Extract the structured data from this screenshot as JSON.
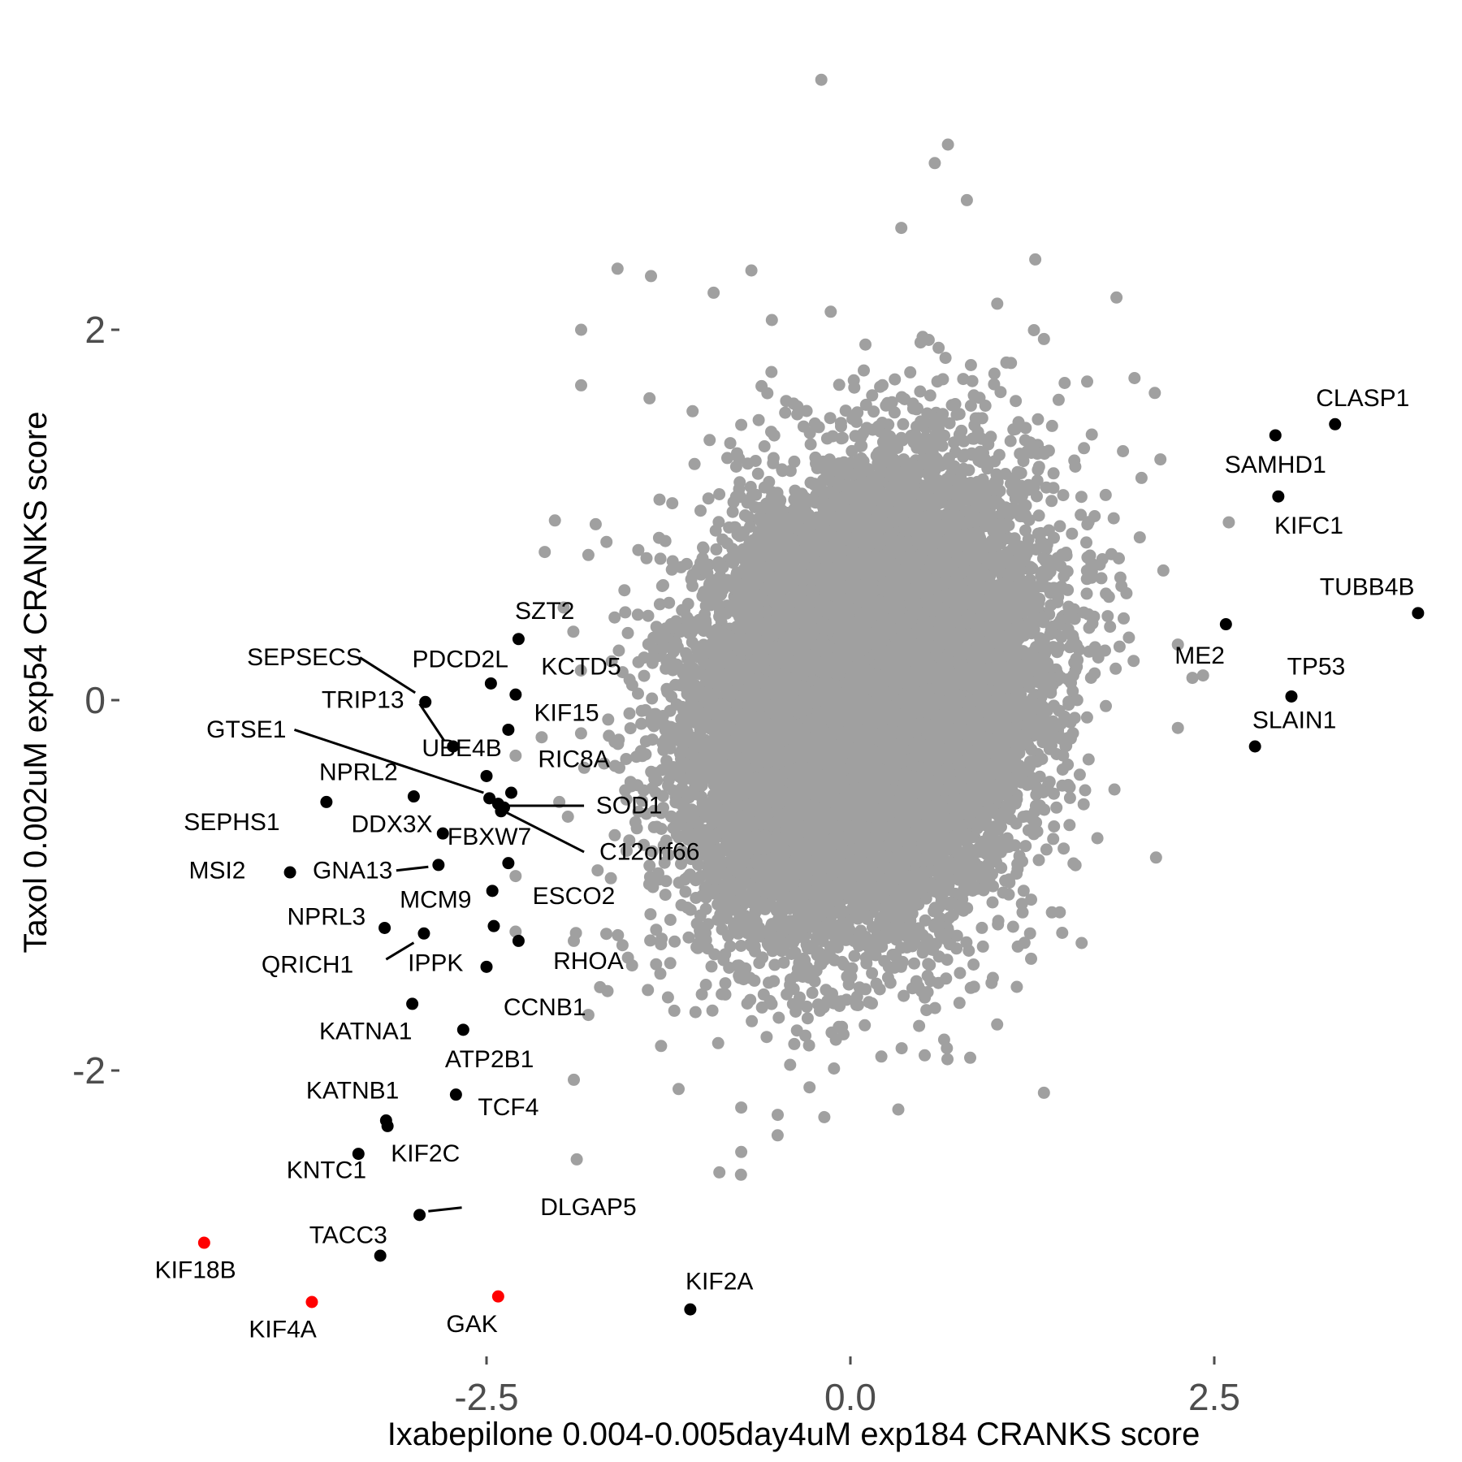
{
  "chart_data": {
    "type": "scatter",
    "xlabel": "Ixabepilone 0.004-0.005day4uM exp184 CRANKS score",
    "ylabel": "Taxol 0.002uM exp54 CRANKS score",
    "xlim": [
      -4.6,
      4.2
    ],
    "ylim": [
      -3.45,
      3.4
    ],
    "x_ticks": [
      -2.5,
      0.0,
      2.5
    ],
    "x_tick_labels": [
      "-2.5",
      "0.0",
      "2.5"
    ],
    "y_ticks": [
      -2,
      0,
      2
    ],
    "y_tick_labels": [
      "-2",
      "0",
      "2"
    ],
    "grid": false,
    "background_cloud": {
      "color": "#a0a0a0",
      "approx_points": 18000,
      "x_center": 0.1,
      "y_center": 0.0,
      "x_sd": 0.55,
      "y_sd": 0.58,
      "correlation": 0.2,
      "notable_points": [
        [
          -0.2,
          3.35
        ],
        [
          0.67,
          3.0
        ],
        [
          0.58,
          2.9
        ],
        [
          0.8,
          2.7
        ],
        [
          0.35,
          2.55
        ],
        [
          1.27,
          2.38
        ],
        [
          -1.6,
          2.33
        ],
        [
          -1.37,
          2.29
        ],
        [
          -0.68,
          2.32
        ],
        [
          -0.94,
          2.2
        ],
        [
          1.33,
          1.95
        ],
        [
          -1.85,
          2.0
        ],
        [
          -1.85,
          1.7
        ],
        [
          -1.38,
          1.63
        ],
        [
          -1.75,
          0.95
        ],
        [
          2.0,
          1.2
        ],
        [
          2.13,
          1.3
        ],
        [
          2.6,
          0.96
        ],
        [
          2.15,
          0.7
        ],
        [
          2.25,
          0.3
        ],
        [
          2.35,
          0.12
        ],
        [
          2.25,
          -0.15
        ],
        [
          2.1,
          -0.85
        ],
        [
          -2.03,
          0.97
        ],
        [
          -2.1,
          0.8
        ],
        [
          -1.97,
          0.5
        ],
        [
          -2.0,
          -0.55
        ],
        [
          -1.9,
          -1.3
        ],
        [
          -1.8,
          -1.7
        ],
        [
          -1.72,
          -1.55
        ],
        [
          -1.9,
          -2.05
        ],
        [
          -0.75,
          -2.2
        ],
        [
          -0.9,
          -2.55
        ],
        [
          -0.75,
          -2.44
        ],
        [
          -1.88,
          -2.48
        ],
        [
          -0.5,
          -2.35
        ],
        [
          1.33,
          -2.12
        ],
        [
          -2.3,
          -0.95
        ],
        [
          -2.3,
          -1.25
        ],
        [
          -2.3,
          -0.3
        ],
        [
          -1.18,
          -2.1
        ]
      ]
    },
    "highlight_series": [
      {
        "color": "#000000",
        "points": [
          {
            "label": "CLASP1",
            "x": 3.33,
            "y": 1.49
          },
          {
            "label": "SAMHD1",
            "x": 2.92,
            "y": 1.43
          },
          {
            "label": "KIFC1",
            "x": 2.94,
            "y": 1.1
          },
          {
            "label": "TUBB4B",
            "x": 3.9,
            "y": 0.47
          },
          {
            "label": "ME2",
            "x": 2.58,
            "y": 0.41
          },
          {
            "label": "TP53",
            "x": 3.03,
            "y": 0.02
          },
          {
            "label": "SLAIN1",
            "x": 2.78,
            "y": -0.25
          },
          {
            "label": "SZT2",
            "x": -2.28,
            "y": 0.33
          },
          {
            "label": "PDCD2L",
            "x": -2.47,
            "y": 0.09
          },
          {
            "label": "KCTD5",
            "x": -2.3,
            "y": 0.03
          },
          {
            "label": "SEPSECS",
            "x": -2.92,
            "y": -0.01
          },
          {
            "label": "TRIP13",
            "x": -2.73,
            "y": -0.25
          },
          {
            "label": "KIF15",
            "x": -2.35,
            "y": -0.16
          },
          {
            "label": "UBE4B",
            "x": -2.5,
            "y": -0.41
          },
          {
            "label": "RIC8A",
            "x": -2.33,
            "y": -0.5
          },
          {
            "label": "GTSE1",
            "x": -2.48,
            "y": -0.53
          },
          {
            "label": "NPRL2",
            "x": -3.6,
            "y": -0.55
          },
          {
            "label": "SOD1",
            "x": -2.38,
            "y": -0.58
          },
          {
            "label": "C12orf66",
            "x": -2.42,
            "y": -0.56
          },
          {
            "label": "FBXW7",
            "x": -2.4,
            "y": -0.6
          },
          {
            "label": "DDX3X",
            "x": -2.8,
            "y": -0.72
          },
          {
            "label": "SEPHS1",
            "x": -3.0,
            "y": -0.52
          },
          {
            "label": "GNA13",
            "x": -2.83,
            "y": -0.89
          },
          {
            "label": "MSI2",
            "x": -3.85,
            "y": -0.93
          },
          {
            "label": "ESCO2",
            "x": -2.35,
            "y": -0.88
          },
          {
            "label": "MCM9",
            "x": -2.46,
            "y": -1.03
          },
          {
            "label": "NPRL3",
            "x": -3.2,
            "y": -1.23
          },
          {
            "label": "QRICH1",
            "x": -2.93,
            "y": -1.26
          },
          {
            "label": "RHOA",
            "x": -2.45,
            "y": -1.22
          },
          {
            "label": "IPPK",
            "x": -2.28,
            "y": -1.3
          },
          {
            "label": "KATNA1",
            "x": -2.5,
            "y": -1.44
          },
          {
            "label": "CCNB1",
            "x": -3.01,
            "y": -1.64
          },
          {
            "label": "ATP2B1",
            "x": -2.66,
            "y": -1.78
          },
          {
            "label": "TCF4",
            "x": -2.71,
            "y": -2.13
          },
          {
            "label": "KATNB1",
            "x": -3.18,
            "y": -2.3
          },
          {
            "label": "KIF2C",
            "x": -3.19,
            "y": -2.27
          },
          {
            "label": "KNTC1",
            "x": -3.38,
            "y": -2.45
          },
          {
            "label": "DLGAP5",
            "x": -2.96,
            "y": -2.78
          },
          {
            "label": "TACC3",
            "x": -3.23,
            "y": -3.0
          },
          {
            "label": "KIF2A",
            "x": -1.1,
            "y": -3.29
          }
        ]
      },
      {
        "color": "#ff0000",
        "points": [
          {
            "label": "KIF18B",
            "x": -4.44,
            "y": -2.93
          },
          {
            "label": "KIF4A",
            "x": -3.7,
            "y": -3.25
          },
          {
            "label": "GAK",
            "x": -2.42,
            "y": -3.22
          }
        ]
      }
    ],
    "annotations": [
      {
        "text": "CLASP1",
        "x": 3.52,
        "y": 1.63
      },
      {
        "text": "SAMHD1",
        "x": 2.92,
        "y": 1.27
      },
      {
        "text": "KIFC1",
        "x": 3.15,
        "y": 0.94
      },
      {
        "text": "TUBB4B",
        "x": 3.55,
        "y": 0.61
      },
      {
        "text": "ME2",
        "x": 2.4,
        "y": 0.24
      },
      {
        "text": "TP53",
        "x": 3.2,
        "y": 0.18
      },
      {
        "text": "SLAIN1",
        "x": 3.05,
        "y": -0.11
      },
      {
        "text": "SZT2",
        "x": -2.1,
        "y": 0.48
      },
      {
        "text": "PDCD2L",
        "x": -2.68,
        "y": 0.22
      },
      {
        "text": "KCTD5",
        "x": -1.85,
        "y": 0.18
      },
      {
        "text": "SEPSECS",
        "x": -3.75,
        "y": 0.23
      },
      {
        "text": "TRIP13",
        "x": -3.35,
        "y": 0.0
      },
      {
        "text": "KIF15",
        "x": -1.95,
        "y": -0.07
      },
      {
        "text": "UBE4B",
        "x": -2.67,
        "y": -0.26
      },
      {
        "text": "RIC8A",
        "x": -1.9,
        "y": -0.32
      },
      {
        "text": "GTSE1",
        "x": -4.15,
        "y": -0.16
      },
      {
        "text": "NPRL2",
        "x": -3.38,
        "y": -0.39
      },
      {
        "text": "SOD1",
        "x": -1.52,
        "y": -0.57
      },
      {
        "text": "DDX3X",
        "x": -3.15,
        "y": -0.67
      },
      {
        "text": "SEPHS1",
        "x": -4.25,
        "y": -0.66
      },
      {
        "text": "FBXW7",
        "x": -2.48,
        "y": -0.74
      },
      {
        "text": "C12orf66",
        "x": -1.38,
        "y": -0.82
      },
      {
        "text": "MSI2",
        "x": -4.35,
        "y": -0.92
      },
      {
        "text": "GNA13",
        "x": -3.42,
        "y": -0.92
      },
      {
        "text": "MCM9",
        "x": -2.85,
        "y": -1.08
      },
      {
        "text": "ESCO2",
        "x": -1.9,
        "y": -1.06
      },
      {
        "text": "NPRL3",
        "x": -3.6,
        "y": -1.17
      },
      {
        "text": "QRICH1",
        "x": -3.73,
        "y": -1.43
      },
      {
        "text": "IPPK",
        "x": -2.85,
        "y": -1.42
      },
      {
        "text": "RHOA",
        "x": -1.8,
        "y": -1.41
      },
      {
        "text": "KATNA1",
        "x": -3.33,
        "y": -1.79
      },
      {
        "text": "CCNB1",
        "x": -2.1,
        "y": -1.66
      },
      {
        "text": "ATP2B1",
        "x": -2.48,
        "y": -1.94
      },
      {
        "text": "KATNB1",
        "x": -3.42,
        "y": -2.11
      },
      {
        "text": "TCF4",
        "x": -2.35,
        "y": -2.2
      },
      {
        "text": "KIF2C",
        "x": -2.92,
        "y": -2.45
      },
      {
        "text": "KNTC1",
        "x": -3.6,
        "y": -2.54
      },
      {
        "text": "DLGAP5",
        "x": -1.8,
        "y": -2.74
      },
      {
        "text": "TACC3",
        "x": -3.45,
        "y": -2.89
      },
      {
        "text": "KIF18B",
        "x": -4.5,
        "y": -3.08
      },
      {
        "text": "KIF4A",
        "x": -3.9,
        "y": -3.4
      },
      {
        "text": "GAK",
        "x": -2.6,
        "y": -3.37
      },
      {
        "text": "KIF2A",
        "x": -0.9,
        "y": -3.14
      }
    ],
    "leader_lines": [
      {
        "from": [
          -3.37,
          0.23
        ],
        "to": [
          -2.99,
          0.04
        ]
      },
      {
        "from": [
          -2.96,
          -0.02
        ],
        "to": [
          -2.79,
          -0.22
        ]
      },
      {
        "from": [
          -3.82,
          -0.16
        ],
        "to": [
          -2.52,
          -0.5
        ]
      },
      {
        "from": [
          -2.35,
          -0.57
        ],
        "to": [
          -1.83,
          -0.57
        ]
      },
      {
        "from": [
          -2.38,
          -0.6
        ],
        "to": [
          -1.83,
          -0.82
        ]
      },
      {
        "from": [
          -3.12,
          -0.92
        ],
        "to": [
          -2.9,
          -0.9
        ]
      },
      {
        "from": [
          -3.19,
          -1.4
        ],
        "to": [
          -3.0,
          -1.31
        ]
      },
      {
        "from": [
          -2.9,
          -2.76
        ],
        "to": [
          -2.67,
          -2.74
        ]
      }
    ]
  }
}
